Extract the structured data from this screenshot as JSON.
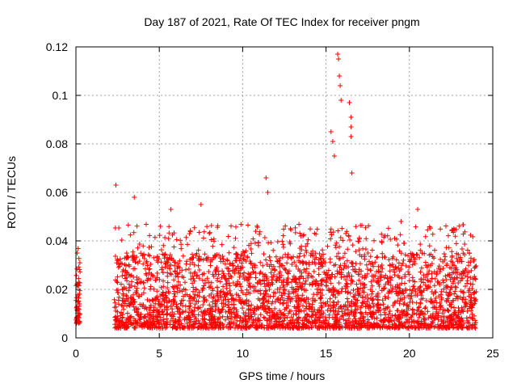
{
  "chart_data": {
    "type": "scatter",
    "title": "Day 187 of 2021, Rate Of TEC Index for receiver pngm",
    "xlabel": "GPS time / hours",
    "ylabel": "ROTI / TECUs",
    "xlim": [
      0,
      25
    ],
    "ylim": [
      0,
      0.12
    ],
    "xticks": [
      0,
      5,
      10,
      15,
      20,
      25
    ],
    "xtick_labels": [
      "0",
      "5",
      "10",
      "15",
      "20",
      "25"
    ],
    "yticks": [
      0,
      0.02,
      0.04,
      0.06,
      0.08,
      0.1,
      0.12
    ],
    "ytick_labels": [
      "0",
      "0.02",
      "0.04",
      "0.06",
      "0.08",
      "0.1",
      "0.12"
    ],
    "grid": true,
    "marker": "+",
    "color": "#ff0000",
    "data_segments": [
      {
        "x_start": 0.0,
        "x_end": 0.25,
        "typical_range": [
          0.006,
          0.026
        ],
        "max": 0.03
      },
      {
        "x_start": 2.3,
        "x_end": 24.0,
        "typical_range": [
          0.004,
          0.035
        ],
        "max": 0.117
      }
    ],
    "notable_points": [
      {
        "x": 2.4,
        "y": 0.063
      },
      {
        "x": 3.5,
        "y": 0.058
      },
      {
        "x": 5.7,
        "y": 0.053
      },
      {
        "x": 7.5,
        "y": 0.055
      },
      {
        "x": 11.4,
        "y": 0.066
      },
      {
        "x": 11.5,
        "y": 0.06
      },
      {
        "x": 15.3,
        "y": 0.085
      },
      {
        "x": 15.4,
        "y": 0.081
      },
      {
        "x": 15.5,
        "y": 0.075
      },
      {
        "x": 15.7,
        "y": 0.117
      },
      {
        "x": 15.75,
        "y": 0.115
      },
      {
        "x": 15.8,
        "y": 0.108
      },
      {
        "x": 15.85,
        "y": 0.104
      },
      {
        "x": 15.9,
        "y": 0.098
      },
      {
        "x": 16.4,
        "y": 0.097
      },
      {
        "x": 16.5,
        "y": 0.091
      },
      {
        "x": 16.5,
        "y": 0.087
      },
      {
        "x": 16.5,
        "y": 0.083
      },
      {
        "x": 16.55,
        "y": 0.068
      },
      {
        "x": 19.5,
        "y": 0.048
      },
      {
        "x": 20.5,
        "y": 0.053
      }
    ]
  }
}
